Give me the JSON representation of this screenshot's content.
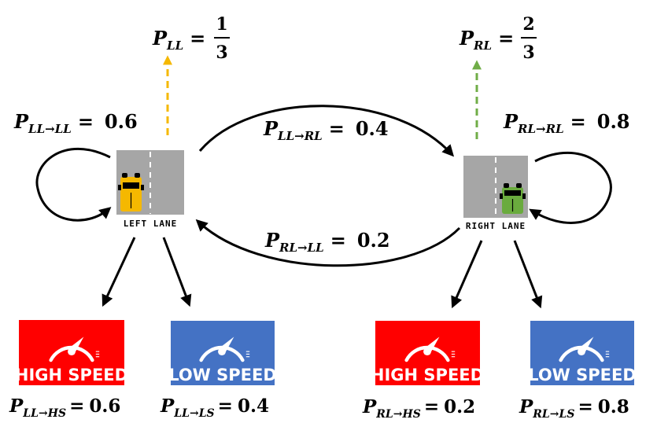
{
  "colors": {
    "left_arrow": "#f5b800",
    "right_arrow": "#70ad47",
    "left_car": "#f5b800",
    "right_car": "#6aab3e",
    "high_speed": "#ff0000",
    "low_speed": "#4472c4",
    "road": "#a6a6a6"
  },
  "left_lane": {
    "label": "LEFT LANE",
    "prob": {
      "sub": "LL",
      "num": "1",
      "den": "3"
    },
    "self_loop": {
      "sub": "LL→LL",
      "value": "0.6"
    },
    "to_high": {
      "sub": "LL→HS",
      "value": "0.6"
    },
    "to_low": {
      "sub": "LL→LS",
      "value": "0.4"
    }
  },
  "right_lane": {
    "label": "RIGHT LANE",
    "prob": {
      "sub": "RL",
      "num": "2",
      "den": "3"
    },
    "self_loop": {
      "sub": "RL→RL",
      "value": "0.8"
    },
    "to_high": {
      "sub": "RL→HS",
      "value": "0.2"
    },
    "to_low": {
      "sub": "RL→LS",
      "value": "0.8"
    }
  },
  "transitions": {
    "ll_to_rl": {
      "sub": "LL→RL",
      "value": "0.4"
    },
    "rl_to_ll": {
      "sub": "RL→LL",
      "value": "0.2"
    }
  },
  "badges": {
    "high_speed": "HIGH SPEED",
    "low_speed": "LOW SPEED"
  },
  "symbols": {
    "P": "P",
    "eq": "="
  },
  "icons": [
    "car-icon",
    "speedometer-icon",
    "road-icon",
    "arrow-icon"
  ]
}
